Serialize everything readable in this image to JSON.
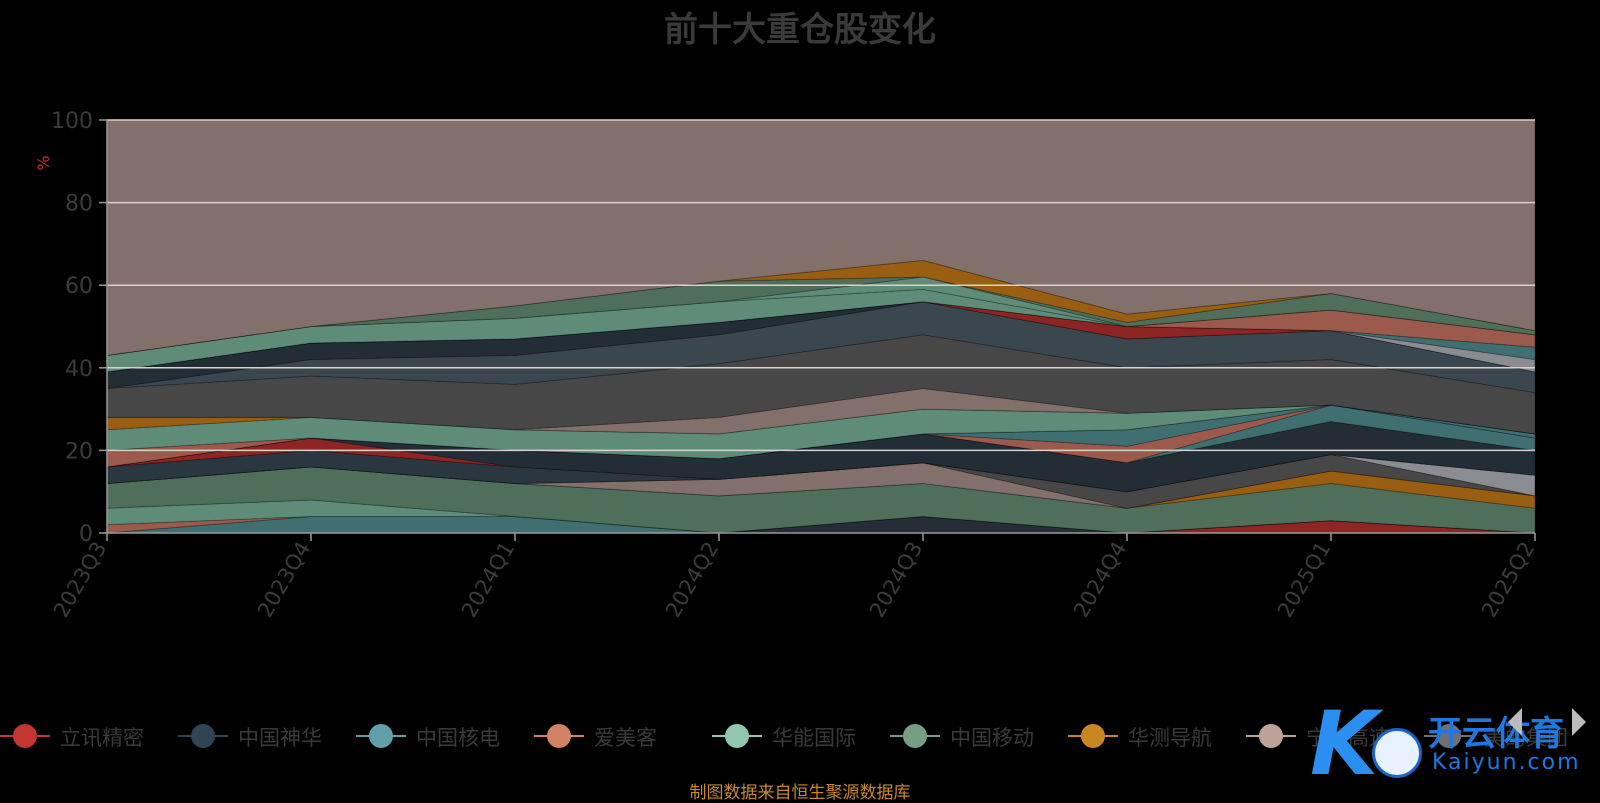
{
  "chart_data": {
    "type": "area",
    "title": "前十大重仓股变化",
    "ylabel": "%",
    "ylim": [
      0,
      100
    ],
    "yticks": [
      "0",
      "20",
      "40",
      "60",
      "80",
      "100"
    ],
    "categories": [
      "2023Q3",
      "2023Q4",
      "2024Q1",
      "2024Q2",
      "2024Q3",
      "2024Q4",
      "2025Q1",
      "2025Q2"
    ],
    "stack_bounds": [
      [
        0,
        0,
        0,
        0,
        0,
        0,
        0,
        0
      ],
      [
        0,
        0,
        0,
        0,
        0,
        0,
        3,
        0
      ],
      [
        0,
        0,
        0,
        0,
        4,
        0,
        3,
        0
      ],
      [
        0,
        4,
        4,
        0,
        4,
        0,
        3,
        0
      ],
      [
        2,
        4,
        4,
        0,
        4,
        0,
        3,
        0
      ],
      [
        6,
        8,
        4,
        0,
        4,
        0,
        3,
        0
      ],
      [
        12,
        16,
        12,
        9,
        12,
        6,
        12,
        6
      ],
      [
        12,
        16,
        12,
        9,
        12,
        6,
        15,
        9
      ],
      [
        12,
        16,
        12,
        13,
        17,
        6,
        15,
        9
      ],
      [
        12,
        16,
        12,
        13,
        17,
        10,
        19,
        9
      ],
      [
        12,
        16,
        12,
        13,
        17,
        10,
        19,
        14
      ],
      [
        16,
        20,
        16,
        13,
        17,
        10,
        19,
        14
      ],
      [
        16,
        23,
        16,
        13,
        17,
        10,
        19,
        14
      ],
      [
        16,
        23,
        20,
        18,
        24,
        17,
        27,
        20
      ],
      [
        16,
        23,
        20,
        18,
        24,
        17,
        31,
        23
      ],
      [
        16,
        23,
        20,
        18,
        24,
        21,
        31,
        23
      ],
      [
        16,
        23,
        20,
        18,
        24,
        25,
        31,
        24
      ],
      [
        20,
        23,
        20,
        18,
        24,
        25,
        31,
        24
      ],
      [
        25,
        28,
        25,
        24,
        30,
        29,
        31,
        24
      ],
      [
        28,
        28,
        25,
        24,
        30,
        29,
        31,
        24
      ],
      [
        28,
        28,
        25,
        28,
        35,
        29,
        31,
        24
      ],
      [
        35,
        38,
        36,
        41,
        48,
        40,
        42,
        34
      ],
      [
        35,
        42,
        43,
        48,
        56,
        47,
        49,
        39
      ],
      [
        39,
        46,
        47,
        51,
        56,
        47,
        49,
        39
      ],
      [
        39,
        46,
        47,
        51,
        56,
        50,
        49,
        39
      ],
      [
        39,
        46,
        47,
        51,
        56,
        50,
        49,
        42
      ],
      [
        39,
        46,
        47,
        51,
        56,
        50,
        49,
        45
      ],
      [
        39,
        46,
        47,
        51,
        56,
        50,
        54,
        48
      ],
      [
        43,
        50,
        52,
        56,
        59,
        50,
        54,
        48
      ],
      [
        43,
        50,
        52,
        56,
        62,
        50,
        54,
        48
      ],
      [
        43,
        50,
        55,
        61,
        62,
        51,
        58,
        49
      ],
      [
        43,
        50,
        55,
        61,
        66,
        53,
        58,
        49
      ],
      [
        100,
        100,
        100,
        100,
        100,
        100,
        100,
        100
      ]
    ],
    "band_colors": [
      "#8e2424",
      "#262d36",
      "#3f6f71",
      "#9b5a4c",
      "#5e8c79",
      "#4f6f5a",
      "#9a5e12",
      "#84706a",
      "#474747",
      "#8a8c91",
      "#2b3740",
      "#8e2424",
      "#232d36",
      "#3f6f71",
      "#9b5a4c",
      "#3f6f71",
      "#9b5a4c",
      "#5e8c79",
      "#9a5e12",
      "#84706a",
      "#474747",
      "#3b474f",
      "#232d36",
      "#8e2424",
      "#8a8c91",
      "#3f6f71",
      "#9b5a4c",
      "#5e8c79",
      "#5e8c79",
      "#4f6f5a",
      "#9a5e12",
      "#84706a"
    ],
    "legend": [
      {
        "name": "立讯精密",
        "color": "#c23531"
      },
      {
        "name": "中国神华",
        "color": "#2f4554"
      },
      {
        "name": "中国核电",
        "color": "#61a0a8"
      },
      {
        "name": "爱美客",
        "color": "#d48265"
      },
      {
        "name": "华能国际",
        "color": "#91c7ae"
      },
      {
        "name": "中国移动",
        "color": "#749f83"
      },
      {
        "name": "华测导航",
        "color": "#ca8622"
      },
      {
        "name": "宁沪高速",
        "color": "#bda29a"
      },
      {
        "name": "美的集团",
        "color": "#6e7074"
      }
    ]
  },
  "footer": "制图数据来自恒生聚源数据库",
  "watermark": {
    "cn": "开云体育",
    "en": "Kaiyun.com"
  }
}
